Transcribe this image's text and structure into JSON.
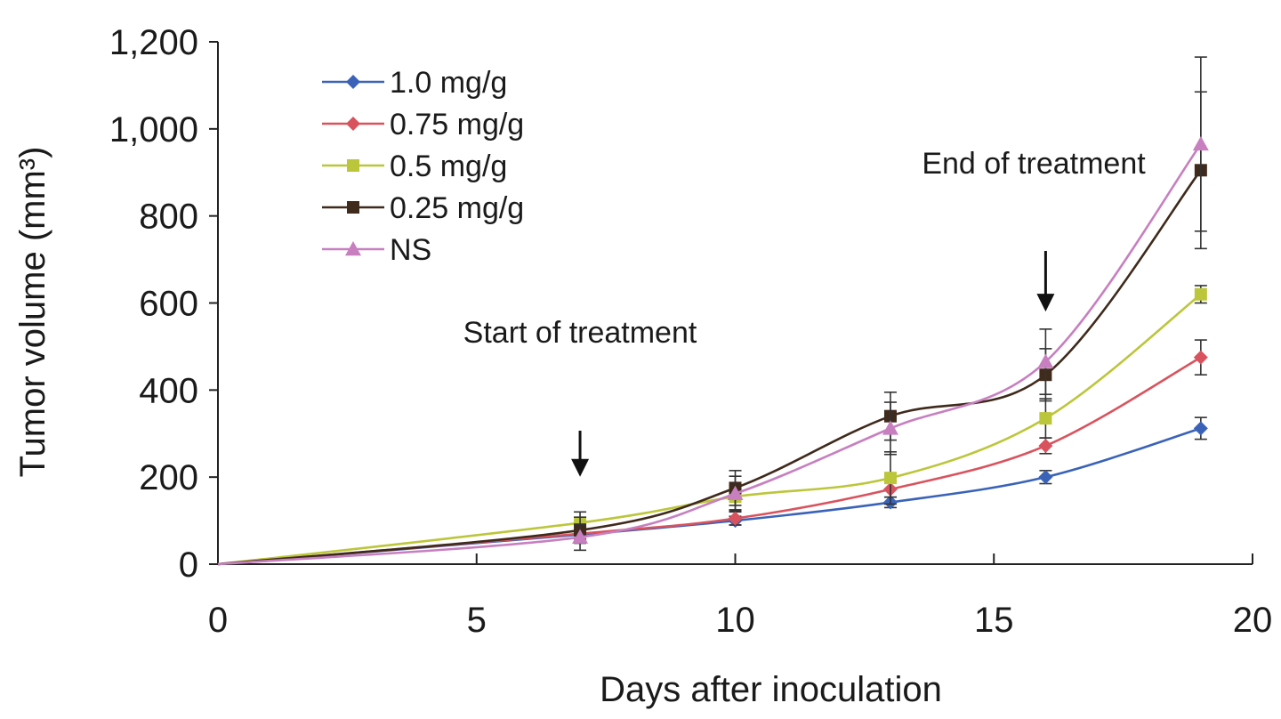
{
  "chart_data": {
    "type": "line",
    "title": "",
    "xlabel": "Days after inoculation",
    "ylabel": "Tumor volume (mm³)",
    "xlim": [
      0,
      20
    ],
    "ylim": [
      0,
      1200
    ],
    "x_ticks": [
      0,
      5,
      10,
      15,
      20
    ],
    "y_ticks": [
      0,
      200,
      400,
      600,
      800,
      1000,
      1200
    ],
    "x_tick_labels": [
      "0",
      "5",
      "10",
      "15",
      "20"
    ],
    "y_tick_labels": [
      "0",
      "200",
      "400",
      "600",
      "800",
      "1,000",
      "1,200"
    ],
    "x": [
      0,
      7,
      10,
      13,
      16,
      19
    ],
    "series": [
      {
        "name": "1.0 mg/g",
        "color": "#3a63b8",
        "marker": "diamond",
        "values": [
          0,
          68,
          100,
          142,
          200,
          312
        ],
        "errors": [
          0,
          10,
          10,
          12,
          15,
          25
        ]
      },
      {
        "name": "0.75 mg/g",
        "color": "#d9535e",
        "marker": "diamond",
        "values": [
          0,
          70,
          105,
          172,
          272,
          475
        ],
        "errors": [
          0,
          12,
          15,
          18,
          18,
          40
        ]
      },
      {
        "name": "0.5 mg/g",
        "color": "#bcc63a",
        "marker": "square",
        "values": [
          0,
          95,
          155,
          198,
          335,
          620
        ],
        "errors": [
          0,
          25,
          30,
          60,
          45,
          20
        ]
      },
      {
        "name": "0.25 mg/g",
        "color": "#3f2a1c",
        "marker": "square",
        "values": [
          0,
          78,
          175,
          340,
          435,
          905
        ],
        "errors": [
          0,
          30,
          40,
          55,
          60,
          180
        ]
      },
      {
        "name": "NS",
        "color": "#c77fc0",
        "marker": "triangle",
        "values": [
          0,
          62,
          162,
          312,
          465,
          965
        ],
        "errors": [
          0,
          30,
          40,
          60,
          75,
          200
        ]
      }
    ],
    "annotations": [
      {
        "text": "Start of treatment",
        "x": 7,
        "arrow_to_y": 160
      },
      {
        "text": "End of treatment",
        "x": 16,
        "arrow_to_y": 570
      }
    ],
    "legend": "top-left",
    "grid": false
  }
}
